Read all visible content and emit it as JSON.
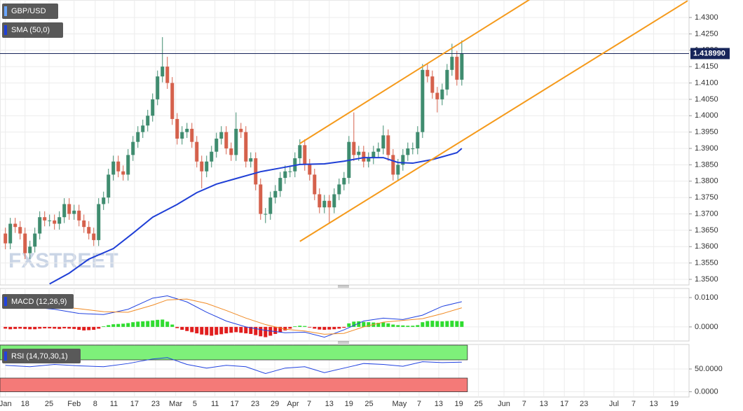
{
  "chart_data": {
    "type": "candlestick",
    "title": "GBP/USD",
    "watermark": "FXSTREET",
    "grid": true,
    "xlim": [
      -1.1,
      139.3
    ],
    "xticks": [
      {
        "value": 0,
        "label": "Jan"
      },
      {
        "value": 4,
        "label": "18"
      },
      {
        "value": 8.9,
        "label": "25"
      },
      {
        "value": 14,
        "label": "Feb"
      },
      {
        "value": 18.3,
        "label": "8"
      },
      {
        "value": 22.1,
        "label": "11"
      },
      {
        "value": 26.3,
        "label": "17"
      },
      {
        "value": 30.6,
        "label": "23"
      },
      {
        "value": 34.7,
        "label": "Mar"
      },
      {
        "value": 38.6,
        "label": "5"
      },
      {
        "value": 42.7,
        "label": "11"
      },
      {
        "value": 46.7,
        "label": "17"
      },
      {
        "value": 50.9,
        "label": "23"
      },
      {
        "value": 54.9,
        "label": "29"
      },
      {
        "value": 58.6,
        "label": "Apr"
      },
      {
        "value": 61.9,
        "label": "7"
      },
      {
        "value": 66,
        "label": "13"
      },
      {
        "value": 70,
        "label": "19"
      },
      {
        "value": 74.1,
        "label": "25"
      },
      {
        "value": 80.3,
        "label": "May"
      },
      {
        "value": 84.3,
        "label": "7"
      },
      {
        "value": 88.3,
        "label": "13"
      },
      {
        "value": 92.4,
        "label": "19"
      },
      {
        "value": 96.4,
        "label": "25"
      },
      {
        "value": 101.6,
        "label": "Jun"
      },
      {
        "value": 105.7,
        "label": "7"
      },
      {
        "value": 109.7,
        "label": "13"
      },
      {
        "value": 113.9,
        "label": "17"
      },
      {
        "value": 117.9,
        "label": "23"
      },
      {
        "value": 124,
        "label": "Jul"
      },
      {
        "value": 128,
        "label": "7"
      },
      {
        "value": 132.1,
        "label": "13"
      },
      {
        "value": 136.3,
        "label": "19"
      }
    ],
    "price": {
      "ylim": [
        1.34829,
        1.43535
      ],
      "yticks": [
        {
          "value": 1.43,
          "label": "1.4300"
        },
        {
          "value": 1.425,
          "label": "1.4250"
        },
        {
          "value": 1.42,
          "label": "1.4200"
        },
        {
          "value": 1.415,
          "label": "1.4150"
        },
        {
          "value": 1.41,
          "label": "1.4100"
        },
        {
          "value": 1.405,
          "label": "1.4050"
        },
        {
          "value": 1.4,
          "label": "1.4000"
        },
        {
          "value": 1.395,
          "label": "1.3950"
        },
        {
          "value": 1.39,
          "label": "1.3900"
        },
        {
          "value": 1.385,
          "label": "1.3850"
        },
        {
          "value": 1.38,
          "label": "1.3800"
        },
        {
          "value": 1.375,
          "label": "1.3750"
        },
        {
          "value": 1.37,
          "label": "1.3700"
        },
        {
          "value": 1.365,
          "label": "1.3650"
        },
        {
          "value": 1.36,
          "label": "1.3600"
        },
        {
          "value": 1.355,
          "label": "1.3550"
        },
        {
          "value": 1.35,
          "label": "1.3500"
        }
      ],
      "up_color": "#3f8c6f",
      "down_color": "#d5614c",
      "open": [
        1.364,
        1.361,
        1.367,
        1.366,
        1.364,
        1.358,
        1.36,
        1.364,
        1.369,
        1.368,
        1.368,
        1.367,
        1.369,
        1.373,
        1.37,
        1.371,
        1.368,
        1.366,
        1.364,
        1.362,
        1.373,
        1.375,
        1.382,
        1.386,
        1.383,
        1.382,
        1.388,
        1.392,
        1.395,
        1.397,
        1.4,
        1.405,
        1.412,
        1.415,
        1.41,
        1.399,
        1.393,
        1.395,
        1.396,
        1.392,
        1.386,
        1.383,
        1.386,
        1.389,
        1.393,
        1.395,
        1.39,
        1.388,
        1.396,
        1.395,
        1.386,
        1.387,
        1.379,
        1.37,
        1.37,
        1.375,
        1.377,
        1.381,
        1.383,
        1.383,
        1.387,
        1.391,
        1.385,
        1.382,
        1.376,
        1.372,
        1.374,
        1.372,
        1.376,
        1.379,
        1.381,
        1.392,
        1.388,
        1.389,
        1.386,
        1.387,
        1.389,
        1.39,
        1.394,
        1.388,
        1.382,
        1.385,
        1.388,
        1.39,
        1.39,
        1.395,
        1.414,
        1.412,
        1.407,
        1.405,
        1.408,
        1.414,
        1.418,
        1.411
      ],
      "high": [
        1.3658,
        1.3688,
        1.3688,
        1.3678,
        1.3658,
        1.3618,
        1.3658,
        1.3708,
        1.3708,
        1.3698,
        1.3698,
        1.3708,
        1.3748,
        1.3748,
        1.3728,
        1.3728,
        1.3698,
        1.3678,
        1.3658,
        1.3748,
        1.3768,
        1.3838,
        1.3878,
        1.3878,
        1.3848,
        1.3898,
        1.3938,
        1.3968,
        1.3988,
        1.4018,
        1.4068,
        1.4138,
        1.424,
        1.418,
        1.4118,
        1.4008,
        1.3968,
        1.3978,
        1.3978,
        1.3938,
        1.3878,
        1.3878,
        1.3908,
        1.3948,
        1.3968,
        1.3968,
        1.3918,
        1.401,
        1.3978,
        1.3968,
        1.3888,
        1.3888,
        1.3808,
        1.3718,
        1.3768,
        1.3788,
        1.3828,
        1.3848,
        1.3848,
        1.3888,
        1.3928,
        1.3928,
        1.3868,
        1.3838,
        1.3778,
        1.3758,
        1.3758,
        1.3778,
        1.3808,
        1.3828,
        1.3938,
        1.401,
        1.3908,
        1.3908,
        1.3888,
        1.3908,
        1.3918,
        1.397,
        1.3958,
        1.3898,
        1.3868,
        1.3898,
        1.3918,
        1.3918,
        1.3968,
        1.4158,
        1.4158,
        1.4138,
        1.4088,
        1.4098,
        1.4158,
        1.422,
        1.4198,
        1.423
      ],
      "low": [
        1.3592,
        1.3592,
        1.3642,
        1.3622,
        1.3562,
        1.3562,
        1.3582,
        1.3622,
        1.3662,
        1.3662,
        1.3652,
        1.3652,
        1.3672,
        1.3682,
        1.3682,
        1.3662,
        1.3642,
        1.3622,
        1.3602,
        1.3602,
        1.3712,
        1.3732,
        1.3802,
        1.3812,
        1.3802,
        1.3802,
        1.3862,
        1.3902,
        1.3932,
        1.3952,
        1.3982,
        1.4032,
        1.4102,
        1.4082,
        1.3972,
        1.3912,
        1.3912,
        1.3932,
        1.3902,
        1.3842,
        1.3778,
        1.3812,
        1.3842,
        1.3872,
        1.3912,
        1.3882,
        1.3862,
        1.3862,
        1.3932,
        1.3842,
        1.3842,
        1.3772,
        1.3682,
        1.3672,
        1.3682,
        1.3732,
        1.3752,
        1.3792,
        1.3812,
        1.3812,
        1.3852,
        1.3832,
        1.3802,
        1.3742,
        1.3702,
        1.3702,
        1.367,
        1.3702,
        1.3742,
        1.3772,
        1.3792,
        1.3862,
        1.3862,
        1.3842,
        1.3842,
        1.3852,
        1.3872,
        1.3882,
        1.3862,
        1.3802,
        1.3802,
        1.3832,
        1.3862,
        1.3882,
        1.3882,
        1.3932,
        1.4102,
        1.4052,
        1.401,
        1.4032,
        1.4062,
        1.4122,
        1.4092,
        1.4092
      ],
      "close": [
        1.361,
        1.367,
        1.366,
        1.364,
        1.358,
        1.36,
        1.364,
        1.369,
        1.368,
        1.368,
        1.367,
        1.369,
        1.373,
        1.37,
        1.371,
        1.368,
        1.366,
        1.364,
        1.362,
        1.373,
        1.375,
        1.382,
        1.386,
        1.383,
        1.382,
        1.388,
        1.392,
        1.395,
        1.397,
        1.4,
        1.405,
        1.412,
        1.415,
        1.41,
        1.399,
        1.393,
        1.395,
        1.396,
        1.392,
        1.386,
        1.383,
        1.386,
        1.389,
        1.393,
        1.395,
        1.39,
        1.388,
        1.396,
        1.395,
        1.386,
        1.387,
        1.379,
        1.37,
        1.37,
        1.375,
        1.377,
        1.381,
        1.383,
        1.383,
        1.387,
        1.391,
        1.385,
        1.382,
        1.376,
        1.372,
        1.374,
        1.372,
        1.376,
        1.379,
        1.381,
        1.392,
        1.388,
        1.389,
        1.386,
        1.387,
        1.389,
        1.39,
        1.394,
        1.388,
        1.382,
        1.385,
        1.388,
        1.39,
        1.39,
        1.395,
        1.414,
        1.412,
        1.407,
        1.405,
        1.408,
        1.414,
        1.418,
        1.411,
        1.419
      ]
    },
    "sma": {
      "name": "SMA (50,0)",
      "color": "#1f3fd6",
      "x": [
        9,
        13,
        17,
        22,
        26,
        30,
        35,
        39,
        43,
        47,
        52,
        56,
        60,
        65,
        69,
        73,
        77,
        80,
        83,
        87,
        92,
        93
      ],
      "values": [
        1.3486,
        1.3519,
        1.3562,
        1.3594,
        1.3641,
        1.369,
        1.3729,
        1.3765,
        1.3791,
        1.3808,
        1.3829,
        1.384,
        1.3851,
        1.3853,
        1.3861,
        1.3872,
        1.3872,
        1.3857,
        1.3855,
        1.3866,
        1.3887,
        1.39
      ]
    },
    "trendlines": {
      "color": "#f59a1b",
      "lines": [
        {
          "x": [
            60,
            108
          ],
          "values": [
            1.3915,
            1.4366
          ]
        },
        {
          "x": [
            60,
            139
          ],
          "values": [
            1.3616,
            1.4351
          ]
        }
      ]
    },
    "last_price": {
      "value": 1.41899,
      "label": "1.418990"
    },
    "last_price_color": "#17255a",
    "macd": {
      "name": "MACD (12,26,9)",
      "ylim": [
        -0.0048,
        0.0131
      ],
      "yticks": [
        {
          "value": 0.01,
          "label": "0.0100"
        },
        {
          "value": 0,
          "label": "0.0000"
        }
      ],
      "hist_up_color": "#2fdc2f",
      "hist_down_color": "#e11d1d",
      "histogram": [
        -0.0006,
        -0.0008,
        -0.0007,
        -0.0006,
        -0.0007,
        -0.0008,
        -0.0008,
        -0.0006,
        -0.0005,
        -0.0005,
        -0.0006,
        -0.0007,
        -0.0005,
        -0.0006,
        -0.0007,
        -0.001,
        -0.0012,
        -0.0011,
        -0.001,
        -0.0006,
        0.0002,
        0.0006,
        0.0009,
        0.001,
        0.0011,
        0.0013,
        0.0016,
        0.0018,
        0.0019,
        0.002,
        0.0022,
        0.0024,
        0.0025,
        0.0018,
        0.0008,
        -0.0004,
        -0.001,
        -0.0014,
        -0.0018,
        -0.0022,
        -0.0026,
        -0.0028,
        -0.003,
        -0.0027,
        -0.0025,
        -0.0022,
        -0.002,
        -0.0018,
        -0.002,
        -0.0022,
        -0.0024,
        -0.0028,
        -0.0032,
        -0.0035,
        -0.003,
        -0.0024,
        -0.0018,
        -0.0012,
        -0.0006,
        0.0002,
        0.0004,
        0.0003,
        -0.0002,
        -0.0006,
        -0.0009,
        -0.001,
        -0.0009,
        -0.0008,
        -0.0006,
        -0.0003,
        0.0012,
        0.0018,
        0.0019,
        0.0017,
        0.0016,
        0.0015,
        0.0014,
        0.0015,
        0.0012,
        0.0008,
        0.0006,
        0.0005,
        0.0004,
        0.0004,
        0.0006,
        0.0016,
        0.002,
        0.0021,
        0.002,
        0.0019,
        0.002,
        0.0021,
        0.002,
        0.0019
      ],
      "macd_line": {
        "color": "#2142e0",
        "x": [
          0,
          5,
          10,
          15,
          20,
          25,
          30,
          33,
          37,
          41,
          45,
          49,
          53,
          57,
          61,
          65,
          69,
          73,
          77,
          81,
          85,
          89,
          93
        ],
        "values": [
          0.0074,
          0.0068,
          0.006,
          0.0046,
          0.0042,
          0.006,
          0.0098,
          0.0106,
          0.0085,
          0.005,
          0.002,
          0.0,
          -0.0012,
          -0.002,
          -0.0018,
          -0.0035,
          -0.001,
          0.002,
          0.003,
          0.0025,
          0.004,
          0.007,
          0.0086
        ]
      },
      "signal_line": {
        "color": "#f08a24",
        "x": [
          0,
          5,
          10,
          15,
          20,
          25,
          30,
          33,
          37,
          41,
          45,
          49,
          53,
          57,
          61,
          65,
          69,
          73,
          77,
          81,
          85,
          89,
          93
        ],
        "values": [
          0.008,
          0.0077,
          0.007,
          0.0062,
          0.0052,
          0.005,
          0.0074,
          0.0092,
          0.0095,
          0.008,
          0.0056,
          0.003,
          0.0008,
          -0.0008,
          -0.0014,
          -0.0025,
          -0.0022,
          0.0,
          0.0016,
          0.0022,
          0.0028,
          0.0045,
          0.0065
        ]
      }
    },
    "rsi": {
      "name": "RSI (14,70,30,1)",
      "ylim": [
        -11.5,
        103.8
      ],
      "yticks": [
        {
          "value": 50,
          "label": "50.0000"
        },
        {
          "value": 0,
          "label": "0.0000"
        }
      ],
      "overbought": 70,
      "oversold": 30,
      "overbought_color": "#7ef07a",
      "oversold_color": "#f47a78",
      "color": "#2142e0",
      "x": [
        0,
        5,
        10,
        15,
        20,
        25,
        30,
        33,
        37,
        41,
        45,
        49,
        53,
        57,
        61,
        65,
        69,
        73,
        77,
        81,
        85,
        89,
        93
      ],
      "values": [
        58,
        55,
        60,
        57,
        55,
        62,
        72,
        75,
        60,
        52,
        58,
        55,
        40,
        52,
        55,
        42,
        52,
        62,
        60,
        56,
        66,
        64,
        65
      ]
    }
  }
}
